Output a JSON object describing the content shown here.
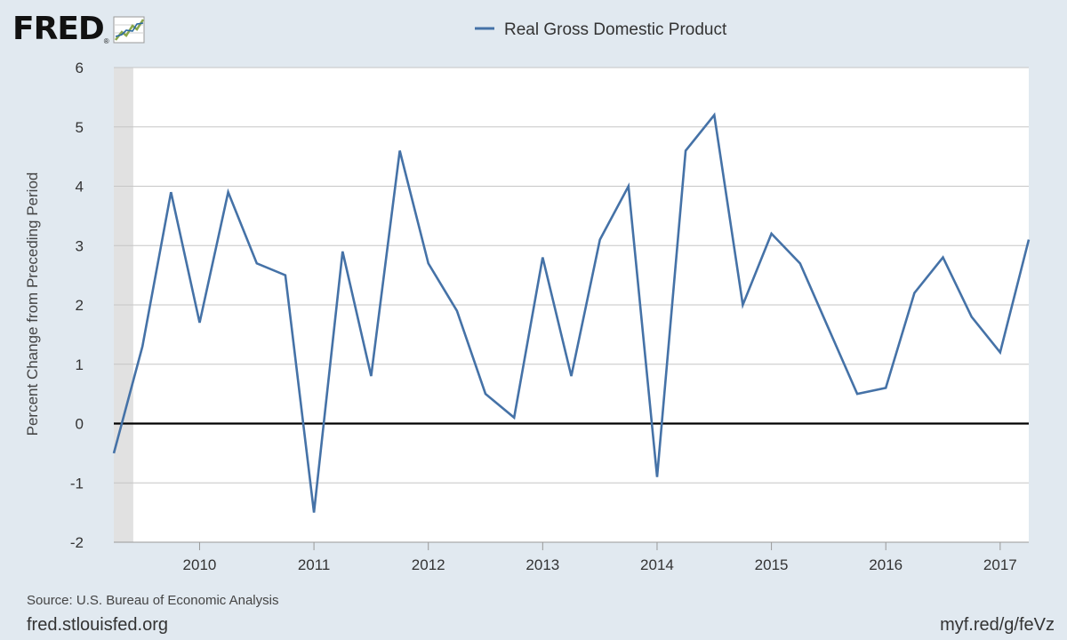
{
  "logo": {
    "text": "FRED",
    "reg": "®"
  },
  "footer": {
    "source": "Source: U.S. Bureau of Economic Analysis",
    "site": "fred.stlouisfed.org",
    "short_url": "myf.red/g/feVz"
  },
  "colors": {
    "series": "#4572a7",
    "recession": "#e1e1e1",
    "background": "#e1e9f0",
    "plot": "#ffffff",
    "zero_line": "#000000",
    "grid": "#c6c6c6"
  },
  "chart_data": {
    "type": "line",
    "title": "",
    "ylabel": "Percent Change from Preceding Period",
    "xlabel": "",
    "ylim": [
      -2,
      6
    ],
    "yticks": [
      -2,
      -1,
      0,
      1,
      2,
      3,
      4,
      5,
      6
    ],
    "xlim": [
      2009.25,
      2017.25
    ],
    "xticks": [
      2010,
      2011,
      2012,
      2013,
      2014,
      2015,
      2016,
      2017
    ],
    "recession_shading": [
      [
        2009.25,
        2009.42
      ]
    ],
    "zero_line": 0,
    "series": [
      {
        "name": "Real Gross Domestic Product",
        "x": [
          2009.25,
          2009.5,
          2009.75,
          2010.0,
          2010.25,
          2010.5,
          2010.75,
          2011.0,
          2011.25,
          2011.5,
          2011.75,
          2012.0,
          2012.25,
          2012.5,
          2012.75,
          2013.0,
          2013.25,
          2013.5,
          2013.75,
          2014.0,
          2014.25,
          2014.5,
          2014.75,
          2015.0,
          2015.25,
          2015.5,
          2015.75,
          2016.0,
          2016.25,
          2016.5,
          2016.75,
          2017.0,
          2017.25
        ],
        "values": [
          -0.5,
          1.3,
          3.9,
          1.7,
          3.9,
          2.7,
          2.5,
          -1.5,
          2.9,
          0.8,
          4.6,
          2.7,
          1.9,
          0.5,
          0.1,
          2.8,
          0.8,
          3.1,
          4.0,
          -0.9,
          4.6,
          5.2,
          2.0,
          3.2,
          2.7,
          1.6,
          0.5,
          0.6,
          2.2,
          2.8,
          1.8,
          1.2,
          3.1
        ]
      }
    ]
  }
}
